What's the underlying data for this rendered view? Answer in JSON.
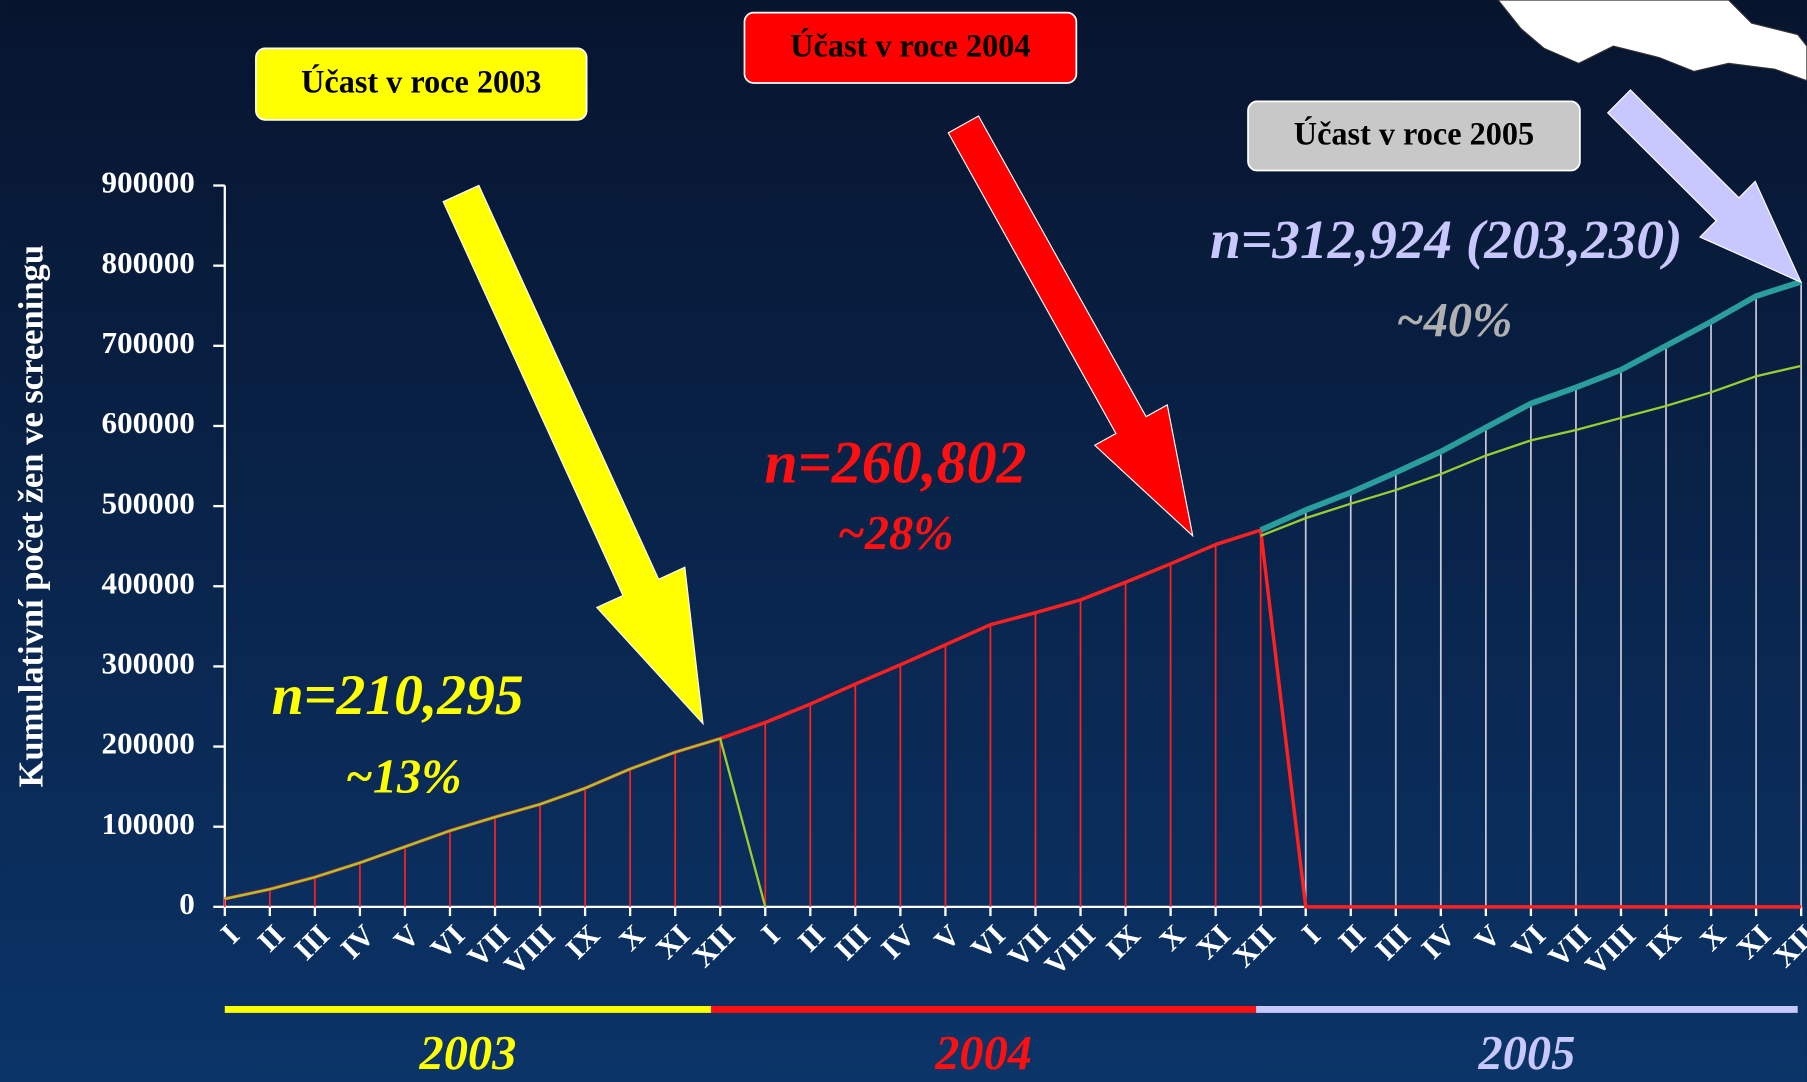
{
  "chart_data": {
    "type": "line",
    "y_label": "Kumulativní počet žen ve screeningu",
    "categories": [
      "I",
      "II",
      "III",
      "IV",
      "V",
      "VI",
      "VII",
      "VIII",
      "IX",
      "X",
      "XI",
      "XII",
      "I",
      "II",
      "III",
      "IV",
      "V",
      "VI",
      "VII",
      "VIII",
      "IX",
      "X",
      "XI",
      "XII",
      "I",
      "II",
      "III",
      "IV",
      "V",
      "VI",
      "VII",
      "VIII",
      "IX",
      "X",
      "XI",
      "XII"
    ],
    "series": [
      {
        "color": "#ff2020",
        "values": [
          10000,
          22000,
          37000,
          55000,
          75000,
          95000,
          112000,
          128000,
          148000,
          172000,
          193000,
          210000,
          230000,
          253000,
          278000,
          302000,
          327000,
          352000,
          367000,
          383000,
          405000,
          428000,
          452000,
          470000,
          0,
          0,
          0,
          0,
          0,
          0,
          0,
          0,
          0,
          0,
          0,
          0
        ]
      },
      {
        "color": "#2a9d9d",
        "values": [
          null,
          null,
          null,
          null,
          null,
          null,
          null,
          null,
          null,
          null,
          null,
          null,
          null,
          null,
          null,
          null,
          null,
          null,
          null,
          null,
          null,
          null,
          null,
          470000,
          495000,
          517000,
          542000,
          568000,
          598000,
          628000,
          648000,
          670000,
          700000,
          730000,
          762000,
          780000
        ]
      },
      {
        "color": "#9acd32",
        "values": [
          10000,
          22000,
          37000,
          55000,
          75000,
          95000,
          112000,
          128000,
          148000,
          172000,
          193000,
          210000,
          0,
          null,
          null,
          null,
          null,
          null,
          null,
          null,
          null,
          null,
          null,
          463000,
          485000,
          503000,
          520000,
          540000,
          563000,
          582000,
          595000,
          610000,
          625000,
          642000,
          662000,
          675000
        ]
      }
    ],
    "ylim": [
      0,
      900000
    ],
    "yticks": [
      0,
      100000,
      200000,
      300000,
      400000,
      500000,
      600000,
      700000,
      800000,
      900000
    ],
    "boxes": [
      {
        "text": "Účast v roce 2003",
        "color": "#ffff00"
      },
      {
        "text": "Účast v roce 2004",
        "color": "#ff0000"
      },
      {
        "text": "Účast v roce 2005",
        "color": "#c8c8c8"
      }
    ],
    "annotations": [
      {
        "text": "n=210,295",
        "color": "#ffff00"
      },
      {
        "text": "~13%",
        "color": "#ffff00"
      },
      {
        "text": "n=260,802",
        "color": "#ff1010"
      },
      {
        "text": "~28%",
        "color": "#ff1010"
      },
      {
        "text": "n=312,924 (203,230)",
        "color": "#c8c8ff"
      },
      {
        "text": "~40%",
        "color": "#b0b0b0"
      }
    ],
    "years": [
      {
        "text": "2003",
        "color": "#ffff00"
      },
      {
        "text": "2004",
        "color": "#ff1010"
      },
      {
        "text": "2005",
        "color": "#c8c8ff"
      }
    ]
  }
}
